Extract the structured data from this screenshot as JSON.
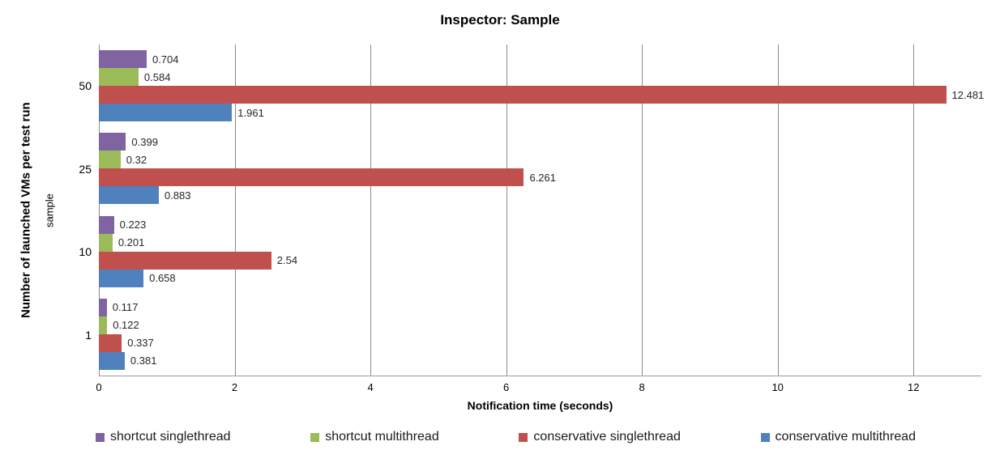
{
  "chart_data": {
    "type": "bar",
    "orientation": "horizontal",
    "title": "Inspector: Sample",
    "xlabel": "Notification time (seconds)",
    "ylabel": "Number of launched VMs per test run",
    "ylabel_inner": "sample",
    "categories": [
      "50",
      "25",
      "10",
      "1"
    ],
    "series": [
      {
        "name": "shortcut singlethread",
        "color": "#8064A2",
        "values": [
          0.704,
          0.399,
          0.223,
          0.117
        ],
        "labels": [
          "0.704",
          "0.399",
          "0.223",
          "0.117"
        ]
      },
      {
        "name": "shortcut multithread",
        "color": "#9BBB59",
        "values": [
          0.584,
          0.32,
          0.201,
          0.122
        ],
        "labels": [
          "0.584",
          "0.32",
          "0.201",
          "0.122"
        ]
      },
      {
        "name": "conservative singlethread",
        "color": "#C0504D",
        "values": [
          12.481,
          6.261,
          2.54,
          0.337
        ],
        "labels": [
          "12.481",
          "6.261",
          "2.54",
          "0.337"
        ]
      },
      {
        "name": "conservative multithread",
        "color": "#4F81BD",
        "values": [
          1.961,
          0.883,
          0.658,
          0.381
        ],
        "labels": [
          "1.961",
          "0.883",
          "0.658",
          "0.381"
        ]
      }
    ],
    "xlim": [
      0,
      13
    ],
    "xticks": [
      0,
      2,
      4,
      6,
      8,
      10,
      12
    ],
    "grid": true,
    "legend_position": "bottom",
    "colors": {
      "gridline": "#8c8c8c",
      "axis_line": "#9a9a9a",
      "background": "#ffffff"
    }
  }
}
